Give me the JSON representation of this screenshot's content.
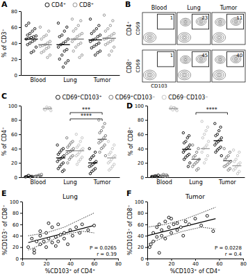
{
  "chart_data": [
    {
      "type": "dot",
      "panel_label": "A",
      "ylabel": "% of CD3⁺",
      "categories": [
        "Blood",
        "Lung",
        "Tumor"
      ],
      "ylim": [
        0,
        80
      ],
      "yticks": [
        0,
        20,
        40,
        60,
        80
      ],
      "legend": "top",
      "series": [
        {
          "name": "CD4⁺",
          "color": "#000000",
          "marker": "open-circle",
          "values": [
            [
              62,
              58,
              55,
              52,
              50,
              49,
              48,
              47,
              46,
              45,
              44,
              42,
              40,
              38,
              35,
              30,
              28,
              65
            ],
            [
              65,
              60,
              55,
              50,
              48,
              45,
              42,
              40,
              38,
              35,
              32,
              30,
              25,
              20,
              18,
              15,
              10
            ],
            [
              70,
              62,
              58,
              55,
              52,
              50,
              48,
              45,
              44,
              42,
              40,
              38,
              36,
              34,
              30,
              28,
              25
            ]
          ],
          "means": [
            45,
            38,
            44
          ]
        },
        {
          "name": "CD8⁺",
          "color": "#8c8c8c",
          "marker": "open-circle",
          "values": [
            [
              60,
              55,
              50,
              48,
              45,
              42,
              40,
              38,
              37,
              36,
              35,
              33,
              30,
              28,
              25,
              22
            ],
            [
              70,
              68,
              62,
              58,
              55,
              52,
              50,
              48,
              45,
              42,
              40,
              38,
              35,
              30,
              25,
              22
            ],
            [
              75,
              68,
              62,
              58,
              55,
              52,
              50,
              48,
              46,
              45,
              44,
              42,
              40,
              38,
              35,
              30,
              25
            ]
          ],
          "means": [
            38,
            45,
            46
          ]
        }
      ]
    },
    {
      "type": "contour",
      "panel_label": "B",
      "xlabel": "CD103",
      "ylabel": "CD69",
      "categories": [
        "Blood",
        "Lung",
        "Tumor"
      ],
      "rows": [
        "CD4⁺",
        "CD8⁺"
      ],
      "values": [
        [
          1,
          23,
          11
        ],
        [
          1,
          45,
          40
        ]
      ],
      "data_labels": true
    },
    {
      "type": "dot",
      "panel_label": "C",
      "ylabel": "% of CD4⁺",
      "categories": [
        "Blood",
        "Lung",
        "Tumor"
      ],
      "ylim": [
        0,
        100
      ],
      "yticks": [
        0,
        20,
        40,
        60,
        80,
        100
      ],
      "legend": "top",
      "series": [
        {
          "name": "CD69⁺CD103⁺",
          "color": "#000000",
          "marker": "open-circle",
          "values": [
            [
              0.5,
              1,
              1.5,
              2,
              0.8,
              1.2,
              0.3,
              2.5
            ],
            [
              45,
              40,
              38,
              35,
              32,
              30,
              28,
              26,
              25,
              22,
              20,
              18,
              15,
              12,
              10,
              8
            ],
            [
              40,
              35,
              30,
              28,
              25,
              22,
              20,
              18,
              16,
              15,
              12,
              10,
              8,
              5
            ]
          ],
          "means": [
            1,
            27,
            20
          ]
        },
        {
          "name": "CD69⁺CD103⁻",
          "color": "#6e6e6e",
          "marker": "open-circle",
          "values": [
            [
              1,
              2,
              3,
              2,
              1.5,
              4,
              2.5,
              1
            ],
            [
              55,
              50,
              48,
              45,
              42,
              40,
              38,
              36,
              35,
              33,
              30,
              28,
              25,
              20
            ],
            [
              80,
              75,
              70,
              65,
              62,
              58,
              55,
              52,
              50,
              48,
              45,
              42,
              40,
              35,
              30
            ]
          ],
          "means": [
            2,
            37,
            53
          ]
        },
        {
          "name": "CD69⁻CD103⁻",
          "color": "#bdbdbd",
          "marker": "open-circle",
          "values": [
            [
              95,
              97,
              96,
              98,
              94,
              93,
              97,
              96
            ],
            [
              60,
              55,
              50,
              45,
              42,
              40,
              38,
              35,
              32,
              30,
              28,
              25,
              22,
              18
            ],
            [
              50,
              45,
              40,
              35,
              32,
              30,
              28,
              25,
              22,
              20,
              18,
              15,
              12,
              10
            ]
          ],
          "means": [
            96,
            37,
            27
          ]
        }
      ],
      "annotations": [
        {
          "text": "***",
          "between": [
            1,
            2
          ]
        },
        {
          "text": "****",
          "between": [
            1,
            2
          ]
        }
      ]
    },
    {
      "type": "dot",
      "panel_label": "D",
      "ylabel": "% of CD8⁺",
      "categories": [
        "Blood",
        "Lung",
        "Tumor"
      ],
      "ylim": [
        0,
        100
      ],
      "yticks": [
        0,
        20,
        40,
        60,
        80,
        100
      ],
      "series": [
        {
          "color": "#000000",
          "marker": "open-circle",
          "values": [
            [
              1,
              0.5,
              2,
              1.5,
              1,
              3,
              0.8,
              1.2
            ],
            [
              62,
              58,
              55,
              50,
              48,
              45,
              42,
              40,
              38,
              35,
              32,
              30,
              28,
              25,
              20,
              15
            ],
            [
              75,
              70,
              65,
              60,
              58,
              55,
              52,
              50,
              48,
              45,
              42,
              40,
              38,
              35,
              30
            ]
          ],
          "means": [
            1,
            39,
            51
          ]
        },
        {
          "color": "#6e6e6e",
          "marker": "open-circle",
          "values": [
            [
              2,
              3,
              1,
              4,
              2.5,
              1.5,
              3,
              2
            ],
            [
              45,
              40,
              35,
              30,
              28,
              25,
              22,
              20,
              18,
              15,
              12,
              10
            ],
            [
              40,
              35,
              30,
              28,
              25,
              22,
              20,
              18,
              16,
              15,
              12,
              10
            ]
          ],
          "means": [
            2,
            25,
            23
          ]
        },
        {
          "color": "#bdbdbd",
          "marker": "open-circle",
          "values": [
            [
              96,
              95,
              97,
              94,
              98,
              93,
              96,
              97
            ],
            [
              78,
              70,
              65,
              60,
              55,
              50,
              45,
              42,
              40,
              35,
              30,
              25,
              20
            ],
            [
              38,
              35,
              30,
              25,
              22,
              20,
              18,
              15,
              12,
              10,
              8,
              5
            ]
          ],
          "means": [
            96,
            40,
            16
          ]
        }
      ],
      "annotations": [
        {
          "text": "****",
          "between": [
            1,
            2
          ]
        }
      ]
    },
    {
      "type": "scatter",
      "panel_label": "E",
      "title": "Lung",
      "xlabel": "%CD103⁺ of CD4⁺",
      "ylabel": "%CD103⁺ of CD8⁺",
      "xlim": [
        0,
        80
      ],
      "xticks": [
        0,
        20,
        40,
        60,
        80
      ],
      "ylim": [
        0,
        100
      ],
      "yticks": [
        0,
        20,
        40,
        60,
        80,
        100
      ],
      "color": "#000000",
      "marker": "open-circle",
      "x": [
        5,
        8,
        10,
        12,
        15,
        15,
        18,
        20,
        20,
        22,
        25,
        25,
        28,
        30,
        30,
        32,
        35,
        38,
        40,
        42,
        45,
        48,
        50,
        55,
        60,
        10,
        22,
        35,
        15,
        28
      ],
      "values": [
        20,
        35,
        15,
        30,
        25,
        40,
        30,
        20,
        45,
        35,
        28,
        55,
        38,
        30,
        60,
        42,
        45,
        25,
        50,
        40,
        55,
        45,
        60,
        50,
        58,
        10,
        62,
        35,
        48,
        22
      ],
      "fit": {
        "x": [
          5,
          60
        ],
        "values": [
          28,
          58
        ],
        "line_style": "solid"
      },
      "ci_upper": {
        "x": [
          5,
          20,
          35,
          50,
          60
        ],
        "values": [
          40,
          45,
          55,
          70,
          80
        ],
        "line_style": "dotted"
      },
      "ci_lower": {
        "x": [
          5,
          20,
          35,
          50,
          60
        ],
        "values": [
          15,
          28,
          42,
          48,
          45
        ],
        "line_style": "dotted"
      },
      "annotations": [
        "P = 0.0265",
        "r = 0.39"
      ]
    },
    {
      "type": "scatter",
      "panel_label": "F",
      "title": "Tumor",
      "xlabel": "%CD103⁺ of CD4⁺",
      "ylabel": "%CD103⁺ of CD8⁺",
      "xlim": [
        0,
        80
      ],
      "xticks": [
        0,
        20,
        40,
        60,
        80
      ],
      "ylim": [
        0,
        100
      ],
      "yticks": [
        0,
        20,
        40,
        60,
        80,
        100
      ],
      "color": "#000000",
      "marker": "open-circle",
      "x": [
        2,
        5,
        5,
        8,
        10,
        10,
        12,
        12,
        15,
        15,
        18,
        20,
        20,
        22,
        25,
        28,
        30,
        32,
        35,
        40,
        45,
        50,
        55,
        8,
        3,
        18,
        25
      ],
      "values": [
        20,
        30,
        45,
        55,
        10,
        60,
        40,
        50,
        35,
        65,
        55,
        45,
        70,
        60,
        50,
        55,
        40,
        65,
        60,
        70,
        58,
        75,
        48,
        38,
        25,
        72,
        62
      ],
      "fit": {
        "x": [
          0,
          57
        ],
        "values": [
          40,
          70
        ],
        "line_style": "solid"
      },
      "ci_upper": {
        "x": [
          0,
          15,
          30,
          45,
          57
        ],
        "values": [
          55,
          60,
          68,
          80,
          90
        ],
        "line_style": "dotted"
      },
      "ci_lower": {
        "x": [
          0,
          15,
          30,
          45,
          57
        ],
        "values": [
          25,
          38,
          48,
          55,
          52
        ],
        "line_style": "dotted"
      },
      "annotations": [
        "P = 0.0228",
        "r = 0.4"
      ]
    }
  ]
}
